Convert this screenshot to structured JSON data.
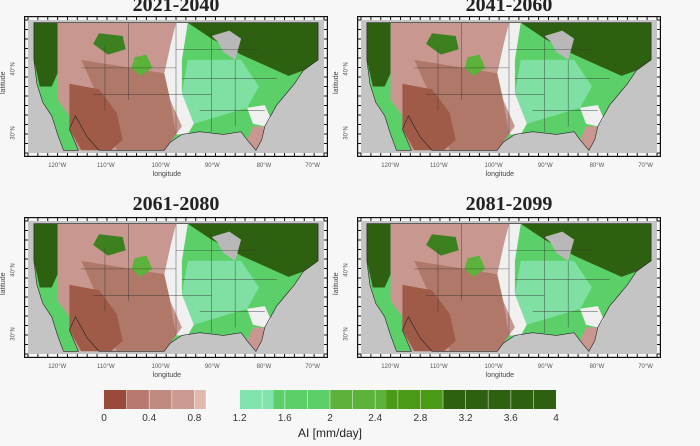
{
  "chart_data": [
    {
      "type": "heatmap",
      "title": "2021-2040",
      "xlabel": "longitude",
      "ylabel": "latitude",
      "xticks": [
        "120°W",
        "110°W",
        "100°W",
        "90°W",
        "80°W",
        "70°W"
      ],
      "yticks": [
        "30°N",
        "40°N"
      ],
      "region": "Contiguous United States and northern Mexico",
      "variable": "AI [mm/day]"
    },
    {
      "type": "heatmap",
      "title": "2041-2060",
      "xlabel": "longitude",
      "ylabel": "latitude",
      "xticks": [
        "120°W",
        "110°W",
        "100°W",
        "90°W",
        "80°W",
        "70°W"
      ],
      "yticks": [
        "30°N",
        "40°N"
      ],
      "region": "Contiguous United States and northern Mexico",
      "variable": "AI [mm/day]"
    },
    {
      "type": "heatmap",
      "title": "2061-2080",
      "xlabel": "longitude",
      "ylabel": "latitude",
      "xticks": [
        "120°W",
        "110°W",
        "100°W",
        "90°W",
        "80°W",
        "70°W"
      ],
      "yticks": [
        "30°N",
        "40°N"
      ],
      "region": "Contiguous United States and northern Mexico",
      "variable": "AI [mm/day]"
    },
    {
      "type": "heatmap",
      "title": "2081-2099",
      "xlabel": "longitude",
      "ylabel": "latitude",
      "xticks": [
        "120°W",
        "110°W",
        "100°W",
        "90°W",
        "80°W",
        "70°W"
      ],
      "yticks": [
        "30°N",
        "40°N"
      ],
      "region": "Contiguous United States and northern Mexico",
      "variable": "AI [mm/day]"
    }
  ],
  "colorbar": {
    "title": "AI [mm/day]",
    "range": [
      0,
      4
    ],
    "tick_labels": [
      "0",
      "0.4",
      "0.8",
      "1.2",
      "1.6",
      "2",
      "2.4",
      "2.8",
      "3.2",
      "3.6",
      "4"
    ],
    "tick_values": [
      0,
      0.4,
      0.8,
      1.2,
      1.6,
      2,
      2.4,
      2.8,
      3.2,
      3.6,
      4
    ],
    "bins": [
      {
        "from": 0.0,
        "to": 0.2,
        "color": "#9a4a3a"
      },
      {
        "from": 0.2,
        "to": 0.4,
        "color": "#b87a70"
      },
      {
        "from": 0.4,
        "to": 0.6,
        "color": "#c08a80"
      },
      {
        "from": 0.6,
        "to": 0.8,
        "color": "#cc9a90"
      },
      {
        "from": 0.8,
        "to": 0.9,
        "color": "#e0b8ac"
      },
      {
        "from": 1.2,
        "to": 1.5,
        "color": "#80e4ac"
      },
      {
        "from": 1.5,
        "to": 2.0,
        "color": "#5cd068"
      },
      {
        "from": 2.0,
        "to": 2.5,
        "color": "#5cb23a"
      },
      {
        "from": 2.5,
        "to": 3.0,
        "color": "#4a9a18"
      },
      {
        "from": 3.0,
        "to": 4.0,
        "color": "#2d6010"
      }
    ]
  },
  "colors": {
    "ocean": "#c4c4c4",
    "dry_dark": "#a05a48",
    "dry_mid": "#b07868",
    "dry_light": "#c89890",
    "transition": "#f0f0f0",
    "wet_light": "#80e0a4",
    "wet_mid": "#5cd068",
    "wet_dark": "#2d6010",
    "lakes": "#b8b8b8"
  }
}
